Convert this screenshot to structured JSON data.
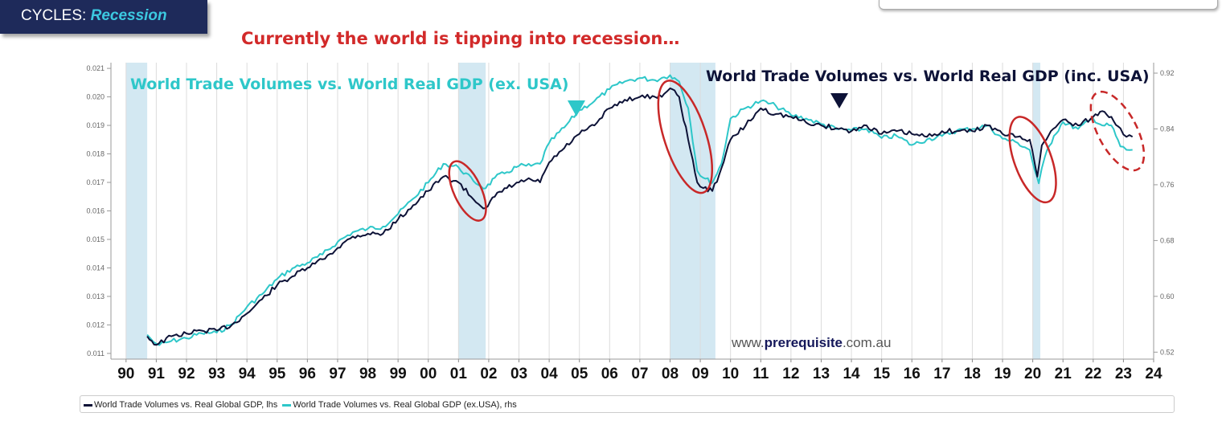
{
  "tag": {
    "prefix": "CYCLES: ",
    "accent": "Recession"
  },
  "headline": "Currently the world is tipping into recession…",
  "watermark": {
    "pre": "www.",
    "bold": "prerequisite",
    "post": ".com.au"
  },
  "colors": {
    "navy": "#0d1237",
    "teal": "#2ec7c9",
    "red": "#c82828",
    "band": "#d3e8f2"
  },
  "chart_data": {
    "type": "line",
    "title_left": "World Trade Volumes vs. World Real GDP (ex. USA)",
    "title_right": "World Trade Volumes vs. World Real GDP (inc. USA)",
    "x_range": [
      1989.5,
      2024
    ],
    "ylim_left": [
      0.0108,
      0.0212
    ],
    "ylim_right": [
      0.51,
      0.935
    ],
    "y_left_ticks": [
      "0.021",
      "0.020",
      "0.019",
      "0.018",
      "0.017",
      "0.016",
      "0.015",
      "0.014",
      "0.013",
      "0.012",
      "0.011"
    ],
    "y_left_values": [
      0.021,
      0.02,
      0.019,
      0.018,
      0.017,
      0.016,
      0.015,
      0.014,
      0.013,
      0.012,
      0.011
    ],
    "y_right_ticks": [
      "0.92",
      "0.84",
      "0.76",
      "0.68",
      "0.60",
      "0.52"
    ],
    "y_right_values": [
      0.92,
      0.84,
      0.76,
      0.68,
      0.6,
      0.52
    ],
    "x_ticks": [
      "90",
      "91",
      "92",
      "93",
      "94",
      "95",
      "96",
      "97",
      "98",
      "99",
      "00",
      "01",
      "02",
      "03",
      "04",
      "05",
      "06",
      "07",
      "08",
      "09",
      "10",
      "11",
      "12",
      "13",
      "14",
      "15",
      "16",
      "17",
      "18",
      "19",
      "20",
      "21",
      "22",
      "23",
      "24"
    ],
    "recessions": [
      [
        1990.0,
        1990.7
      ],
      [
        2001.0,
        2001.9
      ],
      [
        2008.0,
        2009.5
      ],
      [
        2020.0,
        2020.25
      ]
    ],
    "series": [
      {
        "name": "World Trade Volumes vs. Real Global GDP, lhs",
        "axis": "left",
        "x": [
          1990.7,
          1991.0,
          1991.5,
          1992.0,
          1992.5,
          1993.0,
          1993.5,
          1994.0,
          1994.5,
          1995.0,
          1995.5,
          1996.0,
          1996.5,
          1997.0,
          1997.5,
          1998.0,
          1998.5,
          1999.0,
          1999.5,
          2000.0,
          2000.5,
          2001.0,
          2001.5,
          2001.9,
          2002.2,
          2002.6,
          2003.0,
          2003.4,
          2003.7,
          2004.0,
          2004.5,
          2005.0,
          2005.5,
          2006.0,
          2006.5,
          2007.0,
          2007.5,
          2007.8,
          2008.0,
          2008.3,
          2008.6,
          2008.9,
          2009.1,
          2009.4,
          2009.7,
          2010.0,
          2010.5,
          2011.0,
          2011.5,
          2012.0,
          2012.5,
          2013.0,
          2013.5,
          2014.0,
          2014.5,
          2015.0,
          2015.5,
          2016.0,
          2016.5,
          2017.0,
          2017.5,
          2018.0,
          2018.5,
          2019.0,
          2019.5,
          2019.9,
          2020.15,
          2020.3,
          2020.6,
          2021.0,
          2021.5,
          2022.0,
          2022.3,
          2022.6,
          2022.9,
          2023.1,
          2023.3
        ],
        "values": [
          0.0116,
          0.0113,
          0.0116,
          0.0117,
          0.0118,
          0.0118,
          0.012,
          0.0124,
          0.0129,
          0.0134,
          0.0137,
          0.014,
          0.0143,
          0.0147,
          0.0151,
          0.0152,
          0.0152,
          0.0157,
          0.0162,
          0.0167,
          0.0172,
          0.017,
          0.0164,
          0.0161,
          0.0165,
          0.0168,
          0.017,
          0.0171,
          0.017,
          0.0177,
          0.0182,
          0.0187,
          0.019,
          0.0196,
          0.0199,
          0.02,
          0.02,
          0.0201,
          0.0203,
          0.02,
          0.0185,
          0.017,
          0.0168,
          0.0167,
          0.0175,
          0.0185,
          0.019,
          0.0196,
          0.0194,
          0.0193,
          0.0191,
          0.019,
          0.0189,
          0.0188,
          0.019,
          0.0187,
          0.0188,
          0.0187,
          0.0186,
          0.0188,
          0.0188,
          0.0188,
          0.019,
          0.0187,
          0.0186,
          0.0185,
          0.0172,
          0.0183,
          0.0188,
          0.0192,
          0.019,
          0.0193,
          0.0195,
          0.0193,
          0.0189,
          0.0186,
          0.0186
        ]
      },
      {
        "name": "World Trade Volumes vs. Real Global GDP (ex.USA), rhs",
        "axis": "right",
        "x": [
          1990.7,
          1990.9,
          1991.1,
          1991.5,
          1992.0,
          1992.5,
          1993.0,
          1993.5,
          1994.0,
          1994.5,
          1995.0,
          1995.5,
          1996.0,
          1996.5,
          1997.0,
          1997.5,
          1998.0,
          1998.5,
          1999.0,
          1999.5,
          2000.0,
          2000.5,
          2001.0,
          2001.5,
          2001.9,
          2002.2,
          2002.6,
          2003.0,
          2003.4,
          2003.7,
          2004.0,
          2004.5,
          2005.0,
          2005.5,
          2006.0,
          2006.5,
          2007.0,
          2007.5,
          2007.8,
          2008.0,
          2008.3,
          2008.6,
          2008.9,
          2009.1,
          2009.4,
          2009.7,
          2010.0,
          2010.5,
          2011.0,
          2011.5,
          2012.0,
          2012.5,
          2013.0,
          2013.5,
          2014.0,
          2014.5,
          2015.0,
          2015.5,
          2016.0,
          2016.5,
          2017.0,
          2017.5,
          2018.0,
          2018.5,
          2019.0,
          2019.5,
          2019.9,
          2020.05,
          2020.2,
          2020.4,
          2020.7,
          2021.0,
          2021.5,
          2022.0,
          2022.3,
          2022.6,
          2022.9,
          2023.1,
          2023.3
        ],
        "values": [
          0.545,
          0.535,
          0.53,
          0.536,
          0.54,
          0.547,
          0.548,
          0.56,
          0.585,
          0.603,
          0.625,
          0.64,
          0.648,
          0.66,
          0.678,
          0.692,
          0.697,
          0.7,
          0.718,
          0.74,
          0.763,
          0.79,
          0.785,
          0.765,
          0.755,
          0.77,
          0.778,
          0.787,
          0.787,
          0.79,
          0.82,
          0.842,
          0.867,
          0.88,
          0.897,
          0.908,
          0.913,
          0.91,
          0.914,
          0.917,
          0.908,
          0.87,
          0.78,
          0.77,
          0.763,
          0.79,
          0.855,
          0.87,
          0.88,
          0.873,
          0.86,
          0.855,
          0.847,
          0.84,
          0.838,
          0.84,
          0.827,
          0.83,
          0.817,
          0.825,
          0.83,
          0.838,
          0.84,
          0.845,
          0.826,
          0.82,
          0.81,
          0.783,
          0.762,
          0.8,
          0.83,
          0.85,
          0.84,
          0.855,
          0.845,
          0.845,
          0.815,
          0.81,
          0.81
        ]
      }
    ],
    "annotations": [
      {
        "kind": "circle",
        "cx": 2001.3,
        "cy": 0.0167
      },
      {
        "kind": "circle",
        "cx": 2008.5,
        "cy": 0.0186
      },
      {
        "kind": "circle",
        "cx": 2020.0,
        "cy": 0.0178
      },
      {
        "kind": "dashed-circle",
        "cx": 2022.8,
        "cy": 0.0188
      }
    ],
    "markers": [
      {
        "kind": "teal-triangle",
        "x": 2004.9
      },
      {
        "kind": "navy-triangle",
        "x": 2013.6
      }
    ],
    "legend": [
      "World Trade Volumes vs. Real Global GDP, lhs",
      "World Trade Volumes vs. Real Global GDP (ex.USA), rhs"
    ]
  }
}
